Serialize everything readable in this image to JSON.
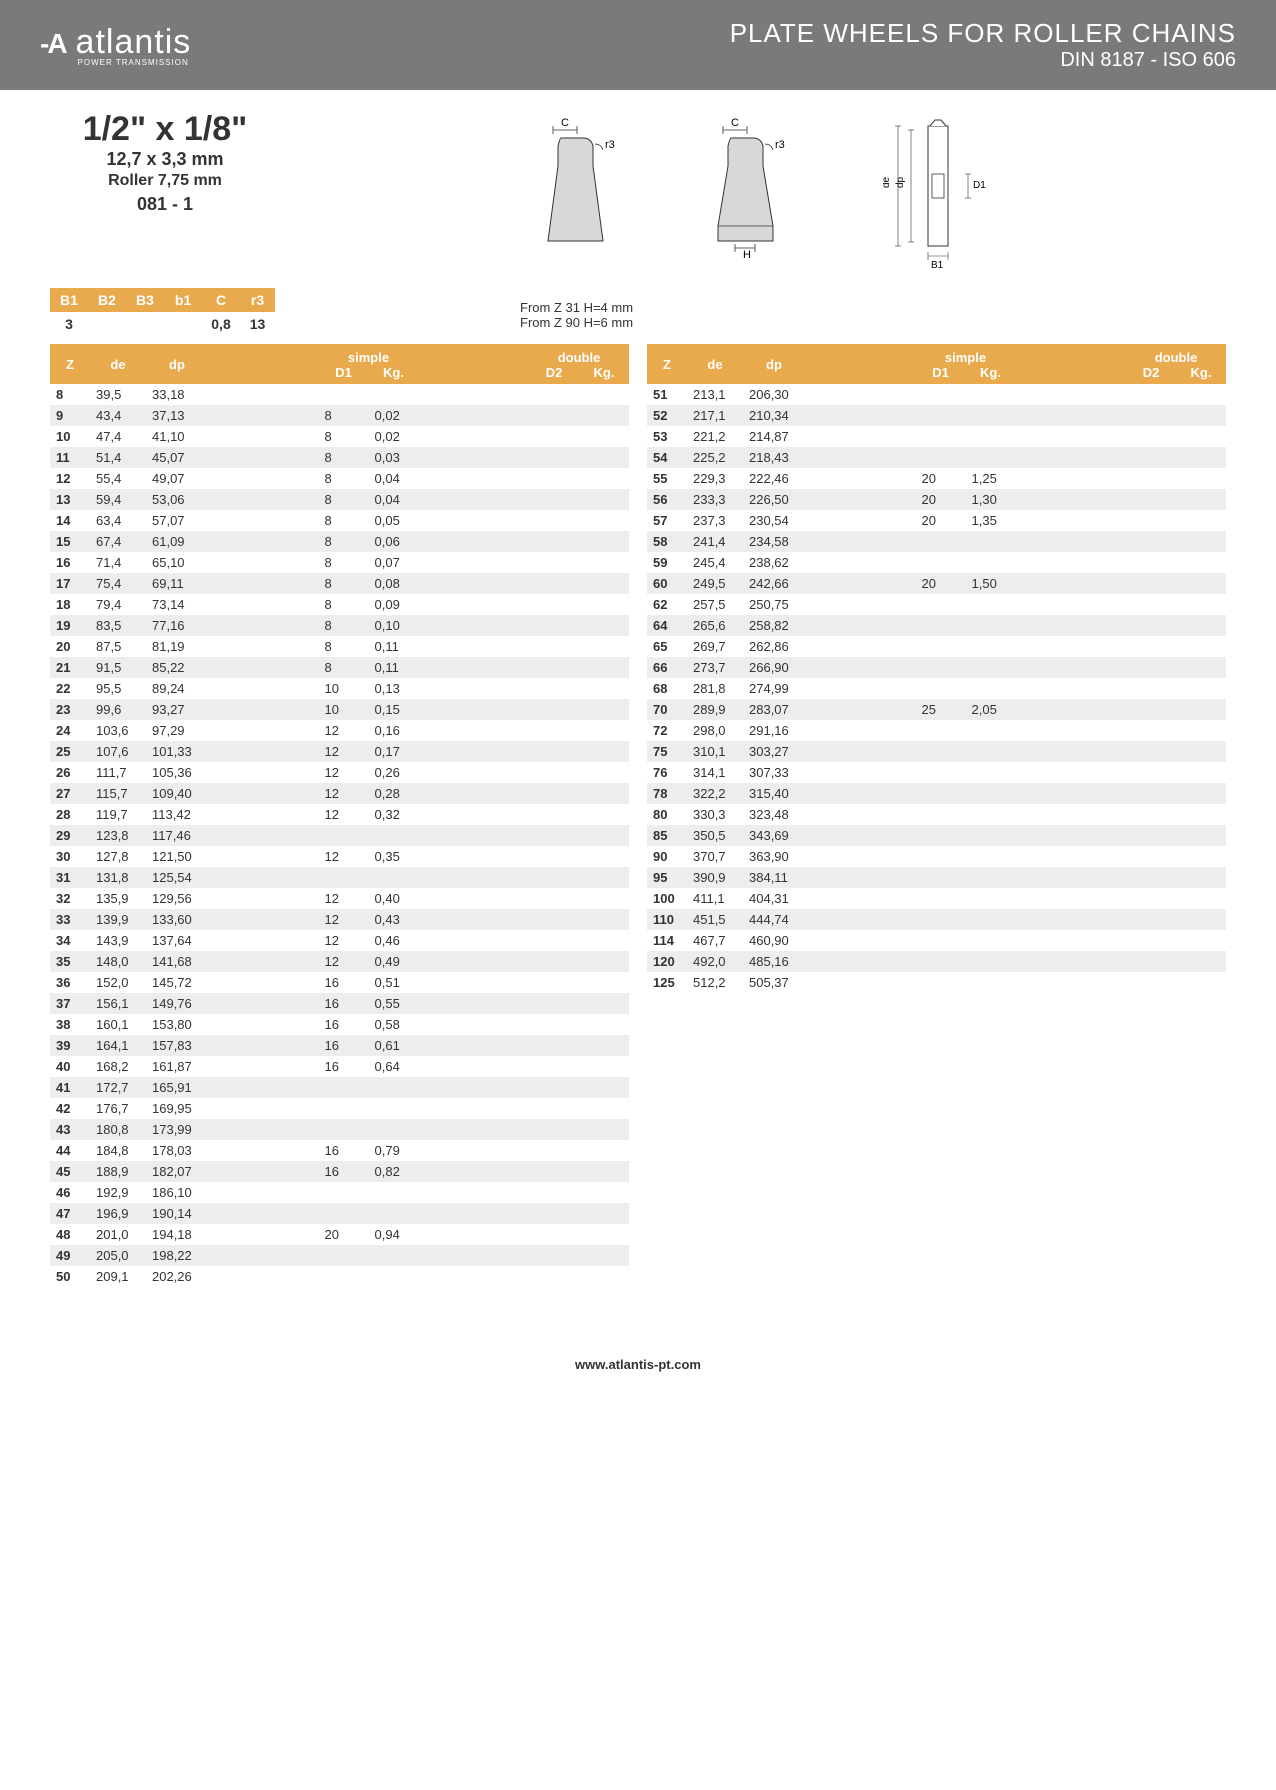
{
  "header": {
    "logo_text": "atlantis",
    "logo_sub": "POWER TRANSMISSION",
    "title_line1": "PLATE WHEELS FOR ROLLER CHAINS",
    "title_line2": "DIN 8187 - ISO 606"
  },
  "spec": {
    "size": "1/2\" x 1/8\"",
    "mm": "12,7 x 3,3 mm",
    "roller": "Roller 7,75 mm",
    "code": "081 - 1"
  },
  "small_table": {
    "headers": [
      "B1",
      "B2",
      "B3",
      "b1",
      "C",
      "r3"
    ],
    "values": [
      "3",
      "",
      "",
      "",
      "0,8",
      "13"
    ]
  },
  "notes": {
    "n1": "From Z 31 H=4 mm",
    "n2": "From Z 90 H=6 mm"
  },
  "main_headers": {
    "z": "Z",
    "de": "de",
    "dp": "dp",
    "simple": "simple",
    "d1": "D1",
    "kg": "Kg.",
    "double": "double",
    "d2": "D2",
    "kg2": "Kg."
  },
  "table_left": [
    {
      "z": "8",
      "de": "39,5",
      "dp": "33,18",
      "d1": "",
      "kg": ""
    },
    {
      "z": "9",
      "de": "43,4",
      "dp": "37,13",
      "d1": "8",
      "kg": "0,02"
    },
    {
      "z": "10",
      "de": "47,4",
      "dp": "41,10",
      "d1": "8",
      "kg": "0,02"
    },
    {
      "z": "11",
      "de": "51,4",
      "dp": "45,07",
      "d1": "8",
      "kg": "0,03"
    },
    {
      "z": "12",
      "de": "55,4",
      "dp": "49,07",
      "d1": "8",
      "kg": "0,04"
    },
    {
      "z": "13",
      "de": "59,4",
      "dp": "53,06",
      "d1": "8",
      "kg": "0,04"
    },
    {
      "z": "14",
      "de": "63,4",
      "dp": "57,07",
      "d1": "8",
      "kg": "0,05"
    },
    {
      "z": "15",
      "de": "67,4",
      "dp": "61,09",
      "d1": "8",
      "kg": "0,06"
    },
    {
      "z": "16",
      "de": "71,4",
      "dp": "65,10",
      "d1": "8",
      "kg": "0,07"
    },
    {
      "z": "17",
      "de": "75,4",
      "dp": "69,11",
      "d1": "8",
      "kg": "0,08"
    },
    {
      "z": "18",
      "de": "79,4",
      "dp": "73,14",
      "d1": "8",
      "kg": "0,09"
    },
    {
      "z": "19",
      "de": "83,5",
      "dp": "77,16",
      "d1": "8",
      "kg": "0,10"
    },
    {
      "z": "20",
      "de": "87,5",
      "dp": "81,19",
      "d1": "8",
      "kg": "0,11"
    },
    {
      "z": "21",
      "de": "91,5",
      "dp": "85,22",
      "d1": "8",
      "kg": "0,11"
    },
    {
      "z": "22",
      "de": "95,5",
      "dp": "89,24",
      "d1": "10",
      "kg": "0,13"
    },
    {
      "z": "23",
      "de": "99,6",
      "dp": "93,27",
      "d1": "10",
      "kg": "0,15"
    },
    {
      "z": "24",
      "de": "103,6",
      "dp": "97,29",
      "d1": "12",
      "kg": "0,16"
    },
    {
      "z": "25",
      "de": "107,6",
      "dp": "101,33",
      "d1": "12",
      "kg": "0,17"
    },
    {
      "z": "26",
      "de": "111,7",
      "dp": "105,36",
      "d1": "12",
      "kg": "0,26"
    },
    {
      "z": "27",
      "de": "115,7",
      "dp": "109,40",
      "d1": "12",
      "kg": "0,28"
    },
    {
      "z": "28",
      "de": "119,7",
      "dp": "113,42",
      "d1": "12",
      "kg": "0,32"
    },
    {
      "z": "29",
      "de": "123,8",
      "dp": "117,46",
      "d1": "",
      "kg": ""
    },
    {
      "z": "30",
      "de": "127,8",
      "dp": "121,50",
      "d1": "12",
      "kg": "0,35"
    },
    {
      "z": "31",
      "de": "131,8",
      "dp": "125,54",
      "d1": "",
      "kg": ""
    },
    {
      "z": "32",
      "de": "135,9",
      "dp": "129,56",
      "d1": "12",
      "kg": "0,40"
    },
    {
      "z": "33",
      "de": "139,9",
      "dp": "133,60",
      "d1": "12",
      "kg": "0,43"
    },
    {
      "z": "34",
      "de": "143,9",
      "dp": "137,64",
      "d1": "12",
      "kg": "0,46"
    },
    {
      "z": "35",
      "de": "148,0",
      "dp": "141,68",
      "d1": "12",
      "kg": "0,49"
    },
    {
      "z": "36",
      "de": "152,0",
      "dp": "145,72",
      "d1": "16",
      "kg": "0,51"
    },
    {
      "z": "37",
      "de": "156,1",
      "dp": "149,76",
      "d1": "16",
      "kg": "0,55"
    },
    {
      "z": "38",
      "de": "160,1",
      "dp": "153,80",
      "d1": "16",
      "kg": "0,58"
    },
    {
      "z": "39",
      "de": "164,1",
      "dp": "157,83",
      "d1": "16",
      "kg": "0,61"
    },
    {
      "z": "40",
      "de": "168,2",
      "dp": "161,87",
      "d1": "16",
      "kg": "0,64"
    },
    {
      "z": "41",
      "de": "172,7",
      "dp": "165,91",
      "d1": "",
      "kg": ""
    },
    {
      "z": "42",
      "de": "176,7",
      "dp": "169,95",
      "d1": "",
      "kg": ""
    },
    {
      "z": "43",
      "de": "180,8",
      "dp": "173,99",
      "d1": "",
      "kg": ""
    },
    {
      "z": "44",
      "de": "184,8",
      "dp": "178,03",
      "d1": "16",
      "kg": "0,79"
    },
    {
      "z": "45",
      "de": "188,9",
      "dp": "182,07",
      "d1": "16",
      "kg": "0,82"
    },
    {
      "z": "46",
      "de": "192,9",
      "dp": "186,10",
      "d1": "",
      "kg": ""
    },
    {
      "z": "47",
      "de": "196,9",
      "dp": "190,14",
      "d1": "",
      "kg": ""
    },
    {
      "z": "48",
      "de": "201,0",
      "dp": "194,18",
      "d1": "20",
      "kg": "0,94"
    },
    {
      "z": "49",
      "de": "205,0",
      "dp": "198,22",
      "d1": "",
      "kg": ""
    },
    {
      "z": "50",
      "de": "209,1",
      "dp": "202,26",
      "d1": "",
      "kg": ""
    }
  ],
  "table_right": [
    {
      "z": "51",
      "de": "213,1",
      "dp": "206,30",
      "d1": "",
      "kg": ""
    },
    {
      "z": "52",
      "de": "217,1",
      "dp": "210,34",
      "d1": "",
      "kg": ""
    },
    {
      "z": "53",
      "de": "221,2",
      "dp": "214,87",
      "d1": "",
      "kg": ""
    },
    {
      "z": "54",
      "de": "225,2",
      "dp": "218,43",
      "d1": "",
      "kg": ""
    },
    {
      "z": "55",
      "de": "229,3",
      "dp": "222,46",
      "d1": "20",
      "kg": "1,25"
    },
    {
      "z": "56",
      "de": "233,3",
      "dp": "226,50",
      "d1": "20",
      "kg": "1,30"
    },
    {
      "z": "57",
      "de": "237,3",
      "dp": "230,54",
      "d1": "20",
      "kg": "1,35"
    },
    {
      "z": "58",
      "de": "241,4",
      "dp": "234,58",
      "d1": "",
      "kg": ""
    },
    {
      "z": "59",
      "de": "245,4",
      "dp": "238,62",
      "d1": "",
      "kg": ""
    },
    {
      "z": "60",
      "de": "249,5",
      "dp": "242,66",
      "d1": "20",
      "kg": "1,50"
    },
    {
      "z": "62",
      "de": "257,5",
      "dp": "250,75",
      "d1": "",
      "kg": ""
    },
    {
      "z": "64",
      "de": "265,6",
      "dp": "258,82",
      "d1": "",
      "kg": ""
    },
    {
      "z": "65",
      "de": "269,7",
      "dp": "262,86",
      "d1": "",
      "kg": ""
    },
    {
      "z": "66",
      "de": "273,7",
      "dp": "266,90",
      "d1": "",
      "kg": ""
    },
    {
      "z": "68",
      "de": "281,8",
      "dp": "274,99",
      "d1": "",
      "kg": ""
    },
    {
      "z": "70",
      "de": "289,9",
      "dp": "283,07",
      "d1": "25",
      "kg": "2,05"
    },
    {
      "z": "72",
      "de": "298,0",
      "dp": "291,16",
      "d1": "",
      "kg": ""
    },
    {
      "z": "75",
      "de": "310,1",
      "dp": "303,27",
      "d1": "",
      "kg": ""
    },
    {
      "z": "76",
      "de": "314,1",
      "dp": "307,33",
      "d1": "",
      "kg": ""
    },
    {
      "z": "78",
      "de": "322,2",
      "dp": "315,40",
      "d1": "",
      "kg": ""
    },
    {
      "z": "80",
      "de": "330,3",
      "dp": "323,48",
      "d1": "",
      "kg": ""
    },
    {
      "z": "85",
      "de": "350,5",
      "dp": "343,69",
      "d1": "",
      "kg": ""
    },
    {
      "z": "90",
      "de": "370,7",
      "dp": "363,90",
      "d1": "",
      "kg": ""
    },
    {
      "z": "95",
      "de": "390,9",
      "dp": "384,11",
      "d1": "",
      "kg": ""
    },
    {
      "z": "100",
      "de": "411,1",
      "dp": "404,31",
      "d1": "",
      "kg": ""
    },
    {
      "z": "110",
      "de": "451,5",
      "dp": "444,74",
      "d1": "",
      "kg": ""
    },
    {
      "z": "114",
      "de": "467,7",
      "dp": "460,90",
      "d1": "",
      "kg": ""
    },
    {
      "z": "120",
      "de": "492,0",
      "dp": "485,16",
      "d1": "",
      "kg": ""
    },
    {
      "z": "125",
      "de": "512,2",
      "dp": "505,37",
      "d1": "",
      "kg": ""
    }
  ],
  "footer": "www.atlantis-pt.com",
  "colors": {
    "header_bg": "#7a7a7a",
    "accent": "#e9a94d",
    "row_alt": "#ededed"
  }
}
